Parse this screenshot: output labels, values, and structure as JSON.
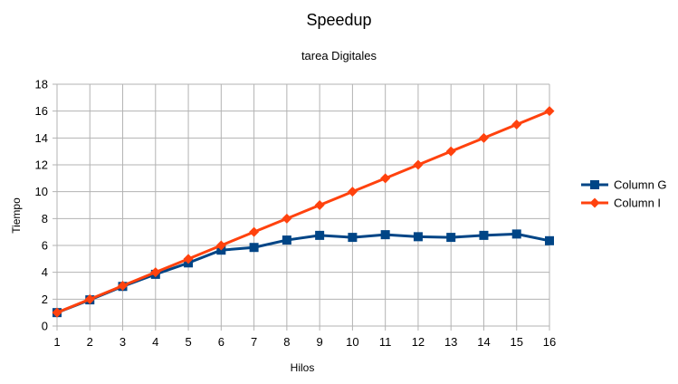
{
  "chart_data": {
    "type": "line",
    "title": "Speedup",
    "subtitle": "tarea Digitales",
    "xlabel": "Hilos",
    "ylabel": "Tiempo",
    "x": [
      1,
      2,
      3,
      4,
      5,
      6,
      7,
      8,
      9,
      10,
      11,
      12,
      13,
      14,
      15,
      16
    ],
    "ylim": [
      0,
      18
    ],
    "yticks": [
      0,
      2,
      4,
      6,
      8,
      10,
      12,
      14,
      16,
      18
    ],
    "grid": true,
    "legend_position": "right",
    "series": [
      {
        "name": "Column G",
        "color": "#004586",
        "marker": "square",
        "values": [
          1,
          1.95,
          2.95,
          3.85,
          4.7,
          5.65,
          5.85,
          6.4,
          6.75,
          6.6,
          6.8,
          6.65,
          6.6,
          6.75,
          6.85,
          6.35
        ]
      },
      {
        "name": "Column I",
        "color": "#ff420e",
        "marker": "diamond",
        "values": [
          1,
          2,
          3,
          4,
          5,
          6,
          7,
          8,
          9,
          10,
          11,
          12,
          13,
          14,
          15,
          16
        ]
      }
    ]
  }
}
